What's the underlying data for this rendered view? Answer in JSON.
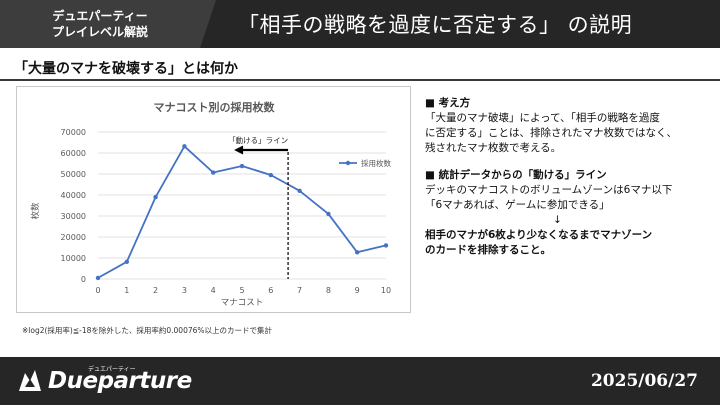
{
  "header": {
    "badge_line1": "デュエパーティー",
    "badge_line2": "プレイレベル解説",
    "title": "「相手の戦略を過度に否定する」 の説明"
  },
  "section_title": "「大量のマナを破壊する」とは何か",
  "chart_data": {
    "type": "line",
    "title": "マナコスト別の採用枚数",
    "xlabel": "マナコスト",
    "ylabel": "枚数",
    "categories": [
      0,
      1,
      2,
      3,
      4,
      5,
      6,
      7,
      8,
      9,
      10
    ],
    "series": [
      {
        "name": "採用枚数",
        "values": [
          500,
          8200,
          39000,
          63200,
          50700,
          53800,
          49500,
          42000,
          31000,
          12700,
          16000
        ]
      }
    ],
    "ylim": [
      0,
      70000
    ],
    "yticks": [
      0,
      10000,
      20000,
      30000,
      40000,
      50000,
      60000,
      70000
    ],
    "grid": true,
    "legend": "right",
    "annotation": {
      "label": "「動ける」ライン",
      "x": 6.6,
      "arrow": "left"
    },
    "colors": {
      "line": "#4472c4",
      "grid": "#d9d9d9",
      "annotation": "#000000"
    }
  },
  "footnote": "※log2(採用率)≦-18を除外した、採用率約0.00076%以上のカードで集計",
  "notes": {
    "p1_head": "■ 考え方",
    "p1_line1": "「大量のマナ破壊」によって、「相手の戦略を過度",
    "p1_line2": "に否定する」ことは、排除されたマナ枚数ではなく、",
    "p1_line3": "残されたマナ枚数で考える。",
    "p2_head": "■ 統計データからの「動ける」ライン",
    "p2_line1": "デッキのマナコストのボリュームゾーンは6マナ以下",
    "p2_line2": "「6マナあれば、ゲームに参加できる」",
    "p2_arrow": "↓",
    "conclusion_line1": "相手のマナが6枚より少なくなるまでマナゾーン",
    "conclusion_line2": "のカードを排除すること。"
  },
  "footer": {
    "logo_sub": "デュエパーティー",
    "logo_text": "Dueparture",
    "logo_icon": "dragon-icon",
    "date": "2025/06/27"
  }
}
